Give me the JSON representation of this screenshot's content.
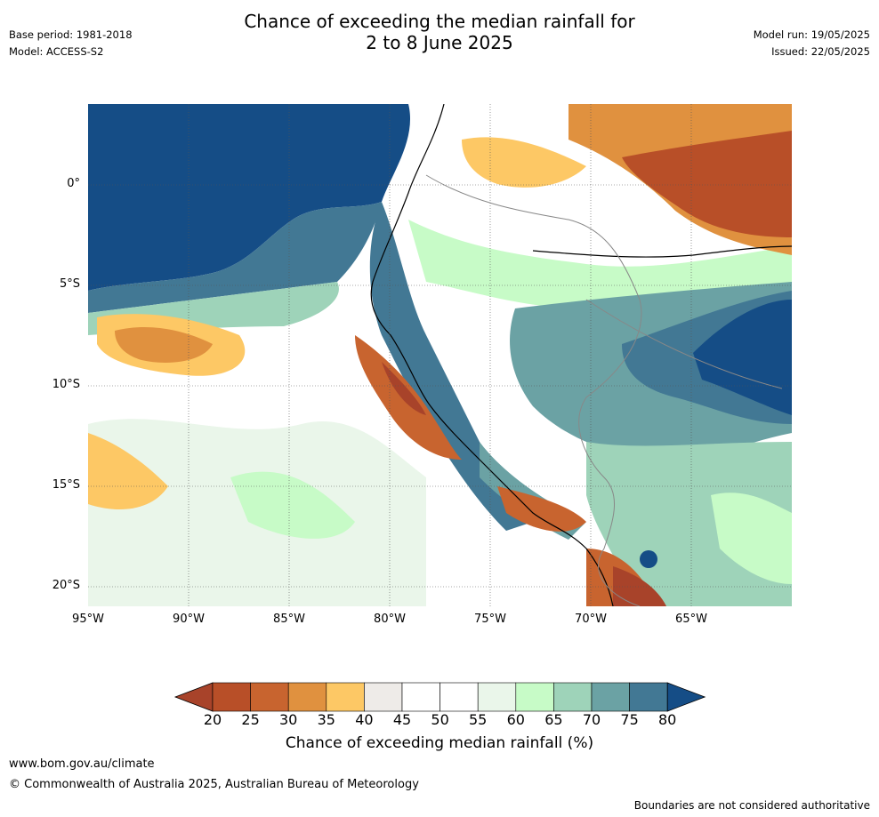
{
  "title_line1": "Chance of exceeding the median rainfall for",
  "title_line2": "2 to 8 June 2025",
  "base_period": "Base period: 1981-2018",
  "model": "Model: ACCESS-S2",
  "model_run": "Model run: 19/05/2025",
  "issued": "Issued: 22/05/2025",
  "lat_labels": [
    "0°",
    "5°S",
    "10°S",
    "15°S",
    "20°S"
  ],
  "lon_labels": [
    "95°W",
    "90°W",
    "85°W",
    "80°W",
    "75°W",
    "70°W",
    "65°W"
  ],
  "colorbar": {
    "ticks": [
      "20",
      "25",
      "30",
      "35",
      "40",
      "45",
      "50",
      "55",
      "60",
      "65",
      "70",
      "75",
      "80"
    ],
    "label": "Chance of exceeding median rainfall (%)",
    "colors": [
      "#a8432a",
      "#b84f28",
      "#c8642f",
      "#e0913f",
      "#fdc865",
      "#eeebe8",
      "#ffffff",
      "#ffffff",
      "#eaf6ea",
      "#c7fbc7",
      "#9ed3b9",
      "#6ba2a4",
      "#427894",
      "#154d86"
    ]
  },
  "footer": {
    "url": "www.bom.gov.au/climate",
    "copyright": "© Commonwealth of Australia 2025, Australian Bureau of Meteorology",
    "note": "Boundaries are not considered authoritative"
  }
}
